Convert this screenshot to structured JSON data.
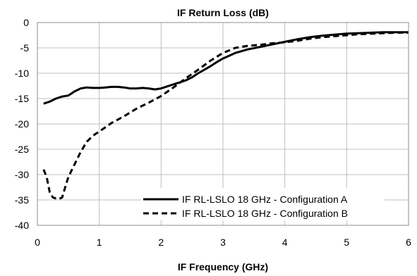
{
  "chart_data": {
    "type": "line",
    "title": "IF Return Loss (dB)",
    "xlabel": "IF Frequency  (GHz)",
    "ylabel": "",
    "xlim": [
      0,
      6
    ],
    "ylim": [
      -40,
      0
    ],
    "xticks": [
      0,
      1,
      2,
      3,
      4,
      5,
      6
    ],
    "yticks": [
      0,
      -5,
      -10,
      -15,
      -20,
      -25,
      -30,
      -35,
      -40
    ],
    "grid": true,
    "legend_position": "bottom-right",
    "series": [
      {
        "name": "IF RL-LSLO 18 GHz - Configuration A",
        "style": "solid",
        "color": "#000000",
        "x": [
          0.1,
          0.2,
          0.3,
          0.4,
          0.5,
          0.6,
          0.7,
          0.8,
          0.9,
          1.0,
          1.1,
          1.2,
          1.3,
          1.4,
          1.5,
          1.6,
          1.7,
          1.8,
          1.9,
          2.0,
          2.1,
          2.2,
          2.3,
          2.4,
          2.5,
          2.6,
          2.7,
          2.8,
          2.9,
          3.0,
          3.2,
          3.4,
          3.6,
          3.8,
          4.0,
          4.2,
          4.4,
          4.6,
          4.8,
          5.0,
          5.2,
          5.4,
          5.6,
          5.8,
          6.0
        ],
        "y": [
          -16.0,
          -15.6,
          -15.0,
          -14.6,
          -14.4,
          -13.6,
          -13.0,
          -12.8,
          -12.9,
          -12.9,
          -12.8,
          -12.7,
          -12.7,
          -12.8,
          -13.0,
          -13.0,
          -12.9,
          -13.0,
          -13.2,
          -13.0,
          -12.6,
          -12.2,
          -11.8,
          -11.4,
          -10.8,
          -10.0,
          -9.3,
          -8.6,
          -7.8,
          -7.1,
          -6.0,
          -5.3,
          -4.8,
          -4.3,
          -3.8,
          -3.3,
          -2.9,
          -2.6,
          -2.4,
          -2.2,
          -2.1,
          -2.0,
          -1.9,
          -1.9,
          -1.9
        ]
      },
      {
        "name": "IF RL-LSLO 18 GHz - Configuration B",
        "style": "dashed",
        "color": "#000000",
        "x": [
          0.1,
          0.15,
          0.2,
          0.25,
          0.3,
          0.35,
          0.4,
          0.45,
          0.5,
          0.6,
          0.7,
          0.8,
          0.9,
          1.0,
          1.2,
          1.4,
          1.6,
          1.8,
          2.0,
          2.2,
          2.4,
          2.6,
          2.8,
          3.0,
          3.2,
          3.4,
          3.6,
          3.8,
          4.0,
          4.2,
          4.4,
          4.6,
          4.8,
          5.0,
          5.2,
          5.4,
          5.6,
          5.8,
          6.0
        ],
        "y": [
          -29.0,
          -30.5,
          -33.5,
          -34.5,
          -34.7,
          -34.8,
          -34.5,
          -32.5,
          -30.5,
          -28.0,
          -25.5,
          -23.5,
          -22.3,
          -21.5,
          -19.8,
          -18.5,
          -17.0,
          -15.8,
          -14.5,
          -12.8,
          -11.0,
          -9.3,
          -7.5,
          -6.0,
          -5.0,
          -4.6,
          -4.4,
          -4.1,
          -3.9,
          -3.6,
          -3.2,
          -2.9,
          -2.7,
          -2.5,
          -2.3,
          -2.2,
          -2.1,
          -2.0,
          -2.0
        ]
      }
    ]
  }
}
